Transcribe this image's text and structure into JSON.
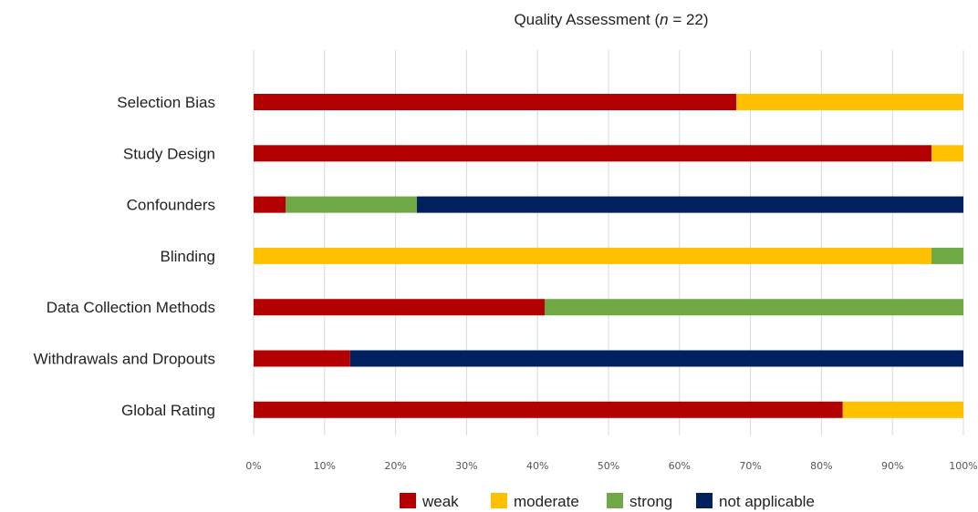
{
  "chart_data": {
    "type": "bar",
    "stacked": true,
    "orientation": "horizontal",
    "title_prefix": "Quality Assessment (",
    "title_italic": "n",
    "title_suffix": " = 22)",
    "categories": [
      "Selection Bias",
      "Study Design",
      "Confounders",
      "Blinding",
      "Data Collection Methods",
      "Withdrawals and Dropouts",
      "Global Rating"
    ],
    "series": [
      {
        "name": "weak",
        "color": "#b30000",
        "values": [
          68,
          95.5,
          4.5,
          0,
          41,
          13.6,
          83
        ]
      },
      {
        "name": "moderate",
        "color": "#ffc000",
        "values": [
          32,
          4.5,
          0,
          95.5,
          0,
          0,
          17
        ]
      },
      {
        "name": "strong",
        "color": "#70a845",
        "values": [
          0,
          0,
          18.5,
          4.5,
          59,
          0,
          0
        ]
      },
      {
        "name": "not applicable",
        "color": "#002060",
        "values": [
          0,
          0,
          77,
          0,
          0,
          86.4,
          0
        ]
      }
    ],
    "xlim": [
      0,
      100
    ],
    "ticks": [
      "0%",
      "10%",
      "20%",
      "30%",
      "40%",
      "50%",
      "60%",
      "70%",
      "80%",
      "90%",
      "100%"
    ],
    "grid": true,
    "legend_position": "bottom"
  }
}
